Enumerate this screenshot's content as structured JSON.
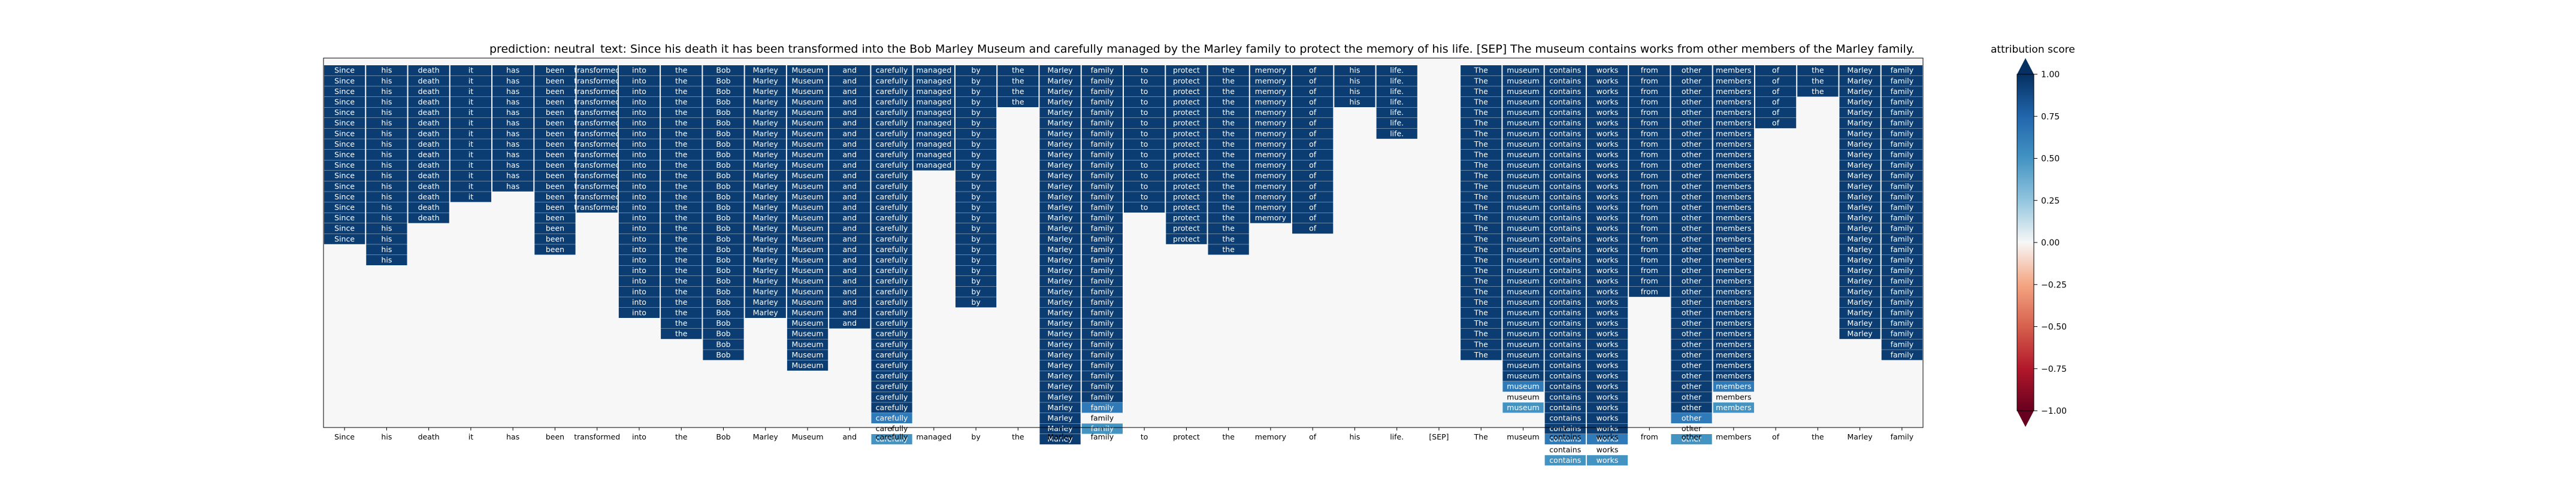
{
  "chart_data": {
    "type": "heatmap",
    "title_prediction": "prediction:  neutral",
    "title_text": "text:  Since his death it has been transformed into the Bob Marley Museum and carefully managed by the Marley family to protect the memory of his life. [SEP] The museum contains works from other members of the Marley family.",
    "tokens": [
      "Since",
      "his",
      "death",
      "it",
      "has",
      "been",
      "transformed",
      "into",
      "the",
      "Bob",
      "Marley",
      "Museum",
      "and",
      "carefully",
      "managed",
      "by",
      "the",
      "Marley",
      "family",
      "to",
      "protect",
      "the",
      "memory",
      "of",
      "his",
      "life.",
      "[SEP]",
      "The",
      "museum",
      "contains",
      "works",
      "from",
      "other",
      "members",
      "of",
      "the",
      "Marley",
      "family"
    ],
    "column_heights": [
      17,
      19,
      15,
      13,
      12,
      18,
      14,
      24,
      26,
      28,
      24,
      29,
      25,
      36,
      10,
      23,
      4,
      36,
      35,
      14,
      17,
      18,
      15,
      16,
      4,
      7,
      0,
      28,
      33,
      38,
      38,
      22,
      36,
      33,
      6,
      3,
      26,
      28
    ],
    "fade_weights": [
      0,
      0,
      0,
      0,
      0,
      0,
      0,
      0,
      0,
      0,
      0,
      0,
      0,
      0.45,
      0,
      0,
      0,
      0,
      0.35,
      0,
      0,
      0,
      0,
      0,
      0,
      0,
      0,
      0,
      0.35,
      0.4,
      0.35,
      0,
      0.35,
      0.3,
      0,
      0,
      0,
      0
    ],
    "cell_value": 0.98,
    "colorbar": {
      "label": "attribution score",
      "ticks": [
        "1.00",
        "0.75",
        "0.50",
        "0.25",
        "0.00",
        "−0.25",
        "−0.50",
        "−0.75",
        "−1.00"
      ],
      "range": [
        -1,
        1
      ]
    }
  }
}
